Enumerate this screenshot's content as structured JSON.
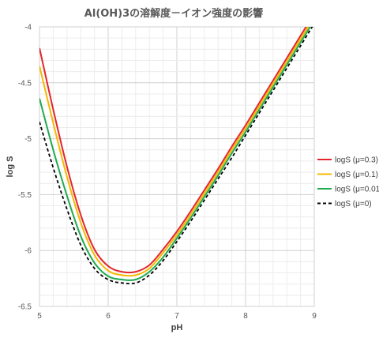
{
  "chart_data": {
    "type": "line",
    "title": "Al(OH)3の溶解度－イオン強度の影響",
    "xlabel": "pH",
    "ylabel": "log S",
    "xlim": [
      5,
      9
    ],
    "ylim": [
      -6.5,
      -4
    ],
    "x_ticks": [
      "5",
      "6",
      "7",
      "8",
      "9"
    ],
    "y_ticks": [
      "-4",
      "-4.5",
      "-5",
      "-5.5",
      "-6",
      "-6.5"
    ],
    "grid": true,
    "legend_position": "right",
    "x": [
      5.0,
      5.2,
      5.4,
      5.6,
      5.8,
      6.0,
      6.2,
      6.4,
      6.6,
      6.8,
      7.0,
      7.2,
      7.4,
      7.6,
      7.8,
      8.0,
      8.2,
      8.4,
      8.6,
      8.8,
      9.0
    ],
    "series": [
      {
        "name": "logS (μ=0.3)",
        "color": "#e3262b",
        "dash": "solid",
        "values": [
          -4.19,
          -4.74,
          -5.25,
          -5.68,
          -5.99,
          -6.14,
          -6.19,
          -6.19,
          -6.13,
          -5.99,
          -5.83,
          -5.65,
          -5.46,
          -5.27,
          -5.07,
          -4.88,
          -4.68,
          -4.48,
          -4.28,
          -4.08,
          -3.88
        ]
      },
      {
        "name": "logS (μ=0.1)",
        "color": "#f5b800",
        "dash": "solid",
        "values": [
          -4.35,
          -4.86,
          -5.34,
          -5.75,
          -6.04,
          -6.18,
          -6.22,
          -6.22,
          -6.16,
          -6.02,
          -5.86,
          -5.68,
          -5.49,
          -5.3,
          -5.1,
          -4.91,
          -4.71,
          -4.51,
          -4.31,
          -4.11,
          -3.91
        ]
      },
      {
        "name": "logS (μ=0.01)",
        "color": "#1faa4e",
        "dash": "solid",
        "values": [
          -4.64,
          -5.1,
          -5.51,
          -5.87,
          -6.11,
          -6.23,
          -6.26,
          -6.26,
          -6.19,
          -6.06,
          -5.89,
          -5.71,
          -5.52,
          -5.33,
          -5.13,
          -4.94,
          -4.74,
          -4.54,
          -4.34,
          -4.14,
          -3.94
        ]
      },
      {
        "name": "logS (μ=0)",
        "color": "#000000",
        "dash": "dashed",
        "values": [
          -4.85,
          -5.26,
          -5.63,
          -5.95,
          -6.16,
          -6.26,
          -6.29,
          -6.29,
          -6.22,
          -6.09,
          -5.92,
          -5.74,
          -5.55,
          -5.36,
          -5.17,
          -4.97,
          -4.77,
          -4.57,
          -4.37,
          -4.17,
          -3.97
        ]
      }
    ]
  }
}
